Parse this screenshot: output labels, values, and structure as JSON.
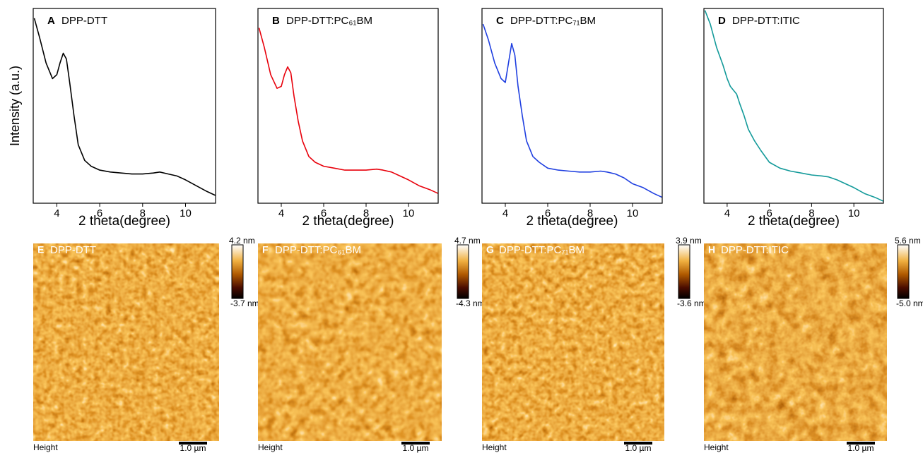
{
  "chart_data": [
    {
      "type": "line",
      "panel": "A",
      "title": "DPP-DTT",
      "y_label": "Intensity (a.u.)",
      "x_label": "2 theta(degree)",
      "color": "#000000",
      "x": [
        2.95,
        3.2,
        3.5,
        3.8,
        4.0,
        4.15,
        4.3,
        4.45,
        4.6,
        4.8,
        5.0,
        5.3,
        5.6,
        6.0,
        6.5,
        7.0,
        7.5,
        8.0,
        8.5,
        8.8,
        9.2,
        9.6,
        10.0,
        10.5,
        11.0,
        11.4
      ],
      "values": [
        95,
        85,
        72,
        64,
        66,
        72,
        77,
        74,
        62,
        45,
        30,
        22,
        19,
        17,
        16,
        15.5,
        15,
        15,
        15.5,
        16,
        15,
        14,
        12,
        9,
        6,
        4
      ],
      "xlim": [
        2.9,
        11.4
      ],
      "xticks": [
        4,
        6,
        8,
        10
      ],
      "ylim": [
        0,
        100
      ]
    },
    {
      "type": "line",
      "panel": "B",
      "title": "DPP-DTT:PC₆₁BM",
      "x_label": "2 theta(degree)",
      "color": "#e8000b",
      "x": [
        2.95,
        3.2,
        3.5,
        3.8,
        4.0,
        4.15,
        4.3,
        4.45,
        4.6,
        4.8,
        5.0,
        5.3,
        5.6,
        6.0,
        6.5,
        7.0,
        7.5,
        8.0,
        8.5,
        8.8,
        9.2,
        9.6,
        10.0,
        10.5,
        11.0,
        11.4
      ],
      "values": [
        90,
        80,
        66,
        59,
        60,
        66,
        70,
        67,
        55,
        42,
        32,
        24,
        21,
        19,
        18,
        17,
        17,
        17,
        17.5,
        17,
        16,
        14,
        12,
        9,
        7,
        5
      ],
      "xlim": [
        2.9,
        11.4
      ],
      "xticks": [
        4,
        6,
        8,
        10
      ],
      "ylim": [
        0,
        100
      ]
    },
    {
      "type": "line",
      "panel": "C",
      "title": "DPP-DTT:PC₇₁BM",
      "x_label": "2 theta(degree)",
      "color": "#1f3fe0",
      "x": [
        2.95,
        3.2,
        3.5,
        3.8,
        4.0,
        4.15,
        4.3,
        4.45,
        4.6,
        4.8,
        5.0,
        5.3,
        5.6,
        6.0,
        6.5,
        7.0,
        7.5,
        8.0,
        8.5,
        8.8,
        9.2,
        9.6,
        10.0,
        10.5,
        11.0,
        11.4
      ],
      "values": [
        92,
        84,
        72,
        64,
        62,
        72,
        82,
        76,
        60,
        45,
        32,
        24,
        21,
        18,
        17,
        16.5,
        16,
        16,
        16.5,
        16,
        15,
        13,
        10,
        8,
        5,
        3
      ],
      "xlim": [
        2.9,
        11.4
      ],
      "xticks": [
        4,
        6,
        8,
        10
      ],
      "ylim": [
        0,
        100
      ]
    },
    {
      "type": "line",
      "panel": "D",
      "title": "DPP-DTT:ITIC",
      "x_label": "2 theta(degree)",
      "color": "#139a9a",
      "x": [
        2.95,
        3.2,
        3.5,
        3.8,
        4.0,
        4.15,
        4.3,
        4.45,
        4.6,
        4.8,
        5.0,
        5.3,
        5.6,
        6.0,
        6.5,
        7.0,
        7.5,
        8.0,
        8.5,
        8.8,
        9.2,
        9.6,
        10.0,
        10.5,
        11.0,
        11.4
      ],
      "values": [
        99,
        92,
        80,
        71,
        64,
        60,
        58,
        56,
        51,
        45,
        38,
        32,
        27,
        21,
        18,
        16.5,
        15.5,
        14.5,
        14,
        13.5,
        12,
        10,
        8,
        5,
        3,
        1
      ],
      "xlim": [
        2.9,
        11.4
      ],
      "xticks": [
        4,
        6,
        8,
        10
      ],
      "ylim": [
        0,
        100
      ]
    }
  ],
  "afm_panels": [
    {
      "panel": "E",
      "title": "DPP-DTT",
      "colorbar_max": "4.2 nm",
      "colorbar_min": "-3.7 nm",
      "channel": "Height",
      "scale_bar": "1.0 µm"
    },
    {
      "panel": "F",
      "title": "DPP-DTT:PC₆₁BM",
      "colorbar_max": "4.7 nm",
      "colorbar_min": "-4.3 nm",
      "channel": "Height",
      "scale_bar": "1.0 µm"
    },
    {
      "panel": "G",
      "title": "DPP-DTT:PC₇₁BM",
      "colorbar_max": "3.9 nm",
      "colorbar_min": "-3.6 nm",
      "channel": "Height",
      "scale_bar": "1.0 µm"
    },
    {
      "panel": "H",
      "title": "DPP-DTT:ITIC",
      "colorbar_max": "5.6 nm",
      "colorbar_min": "-5.0 nm",
      "channel": "Height",
      "scale_bar": "1.0 µm"
    }
  ]
}
